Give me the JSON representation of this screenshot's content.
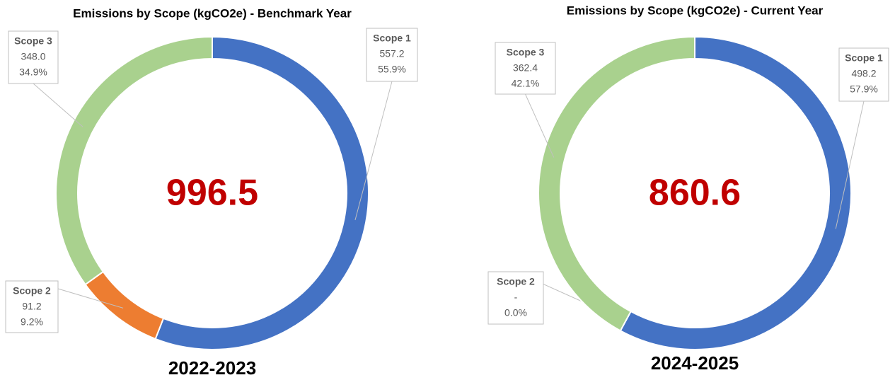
{
  "chart_data": [
    {
      "type": "pie",
      "title": "Emissions by Scope (kgCO2e) - Benchmark Year",
      "subtitle": "2022-2023",
      "total": 996.5,
      "categories": [
        "Scope 1",
        "Scope 2",
        "Scope 3"
      ],
      "values": [
        557.2,
        91.2,
        348.0
      ],
      "value_labels": [
        "557.2",
        "91.2",
        "348.0"
      ],
      "percent_labels": [
        "55.9%",
        "9.2%",
        "34.9%"
      ],
      "colors": [
        "#4472c4",
        "#ed7d31",
        "#a9d18e"
      ]
    },
    {
      "type": "pie",
      "title": "Emissions by Scope (kgCO2e) - Current Year",
      "subtitle": "2024-2025",
      "total": 860.6,
      "categories": [
        "Scope 1",
        "Scope 2",
        "Scope 3"
      ],
      "values": [
        498.2,
        0,
        362.4
      ],
      "value_labels": [
        "498.2",
        "-",
        "362.4"
      ],
      "percent_labels": [
        "57.9%",
        "0.0%",
        "42.1%"
      ],
      "colors": [
        "#4472c4",
        "#ed7d31",
        "#a9d18e"
      ]
    }
  ]
}
